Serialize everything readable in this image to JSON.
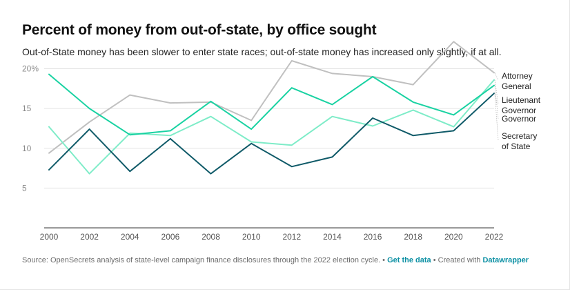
{
  "title": "Percent of money from out-of-state, by office sought",
  "subtitle": "Out-of-State money has been slower to enter state races; out-of-state money has increased only slightly, if at all.",
  "footer": {
    "source": "Source: OpenSecrets analysis of state-level campaign finance disclosures through the 2022 election cycle.",
    "sep1": " • ",
    "get_data": "Get the data",
    "sep2": " • Created with ",
    "datawrapper": "Datawrapper"
  },
  "chart_data": {
    "type": "line",
    "x": [
      2000,
      2002,
      2004,
      2006,
      2008,
      2010,
      2012,
      2014,
      2016,
      2018,
      2020,
      2022
    ],
    "ylim": [
      0,
      21
    ],
    "yticks": [
      5,
      10,
      15,
      20
    ],
    "ytick_labels": [
      "5",
      "10",
      "15",
      "20%"
    ],
    "grid": true,
    "series": [
      {
        "name": "Attorney General",
        "label_lines": [
          "Attorney",
          "General"
        ],
        "color": "#c0c0c0",
        "values": [
          9.4,
          13.3,
          16.7,
          15.7,
          15.8,
          13.5,
          21.0,
          19.4,
          19.0,
          18.0,
          23.4,
          19.5
        ]
      },
      {
        "name": "Lieutenant Governor",
        "label_lines": [
          "Lieutenant",
          "Governor"
        ],
        "color": "#7eecc8",
        "values": [
          12.7,
          6.8,
          11.9,
          11.6,
          14.0,
          10.8,
          10.4,
          14.0,
          12.8,
          14.8,
          12.7,
          18.6
        ]
      },
      {
        "name": "Governor",
        "label_lines": [
          "Governor"
        ],
        "color": "#19d2a2",
        "values": [
          19.3,
          15.0,
          11.7,
          12.2,
          15.9,
          12.4,
          17.6,
          15.5,
          19.0,
          15.8,
          14.2,
          17.9
        ]
      },
      {
        "name": "Secretary of State",
        "label_lines": [
          "Secretary",
          "of State"
        ],
        "color": "#0f5a68",
        "values": [
          7.3,
          12.4,
          7.1,
          11.2,
          6.8,
          10.6,
          7.7,
          8.9,
          13.8,
          11.6,
          12.2,
          16.9
        ]
      }
    ]
  }
}
